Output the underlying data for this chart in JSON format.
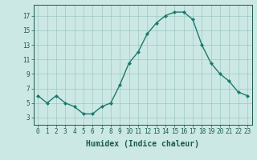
{
  "x": [
    0,
    1,
    2,
    3,
    4,
    5,
    6,
    7,
    8,
    9,
    10,
    11,
    12,
    13,
    14,
    15,
    16,
    17,
    18,
    19,
    20,
    21,
    22,
    23
  ],
  "y": [
    6.0,
    5.0,
    6.0,
    5.0,
    4.5,
    3.5,
    3.5,
    4.5,
    5.0,
    7.5,
    10.5,
    12.0,
    14.5,
    16.0,
    17.0,
    17.5,
    17.5,
    16.5,
    13.0,
    10.5,
    9.0,
    8.0,
    6.5,
    6.0
  ],
  "line_color": "#1a7a6e",
  "marker": "D",
  "markersize": 2.0,
  "linewidth": 1.0,
  "background_color": "#cce8e4",
  "grid_color": "#a0c8c4",
  "xlabel": "Humidex (Indice chaleur)",
  "xlim": [
    -0.5,
    23.5
  ],
  "ylim": [
    2.0,
    18.5
  ],
  "yticks": [
    3,
    5,
    7,
    9,
    11,
    13,
    15,
    17
  ],
  "xticks": [
    0,
    1,
    2,
    3,
    4,
    5,
    6,
    7,
    8,
    9,
    10,
    11,
    12,
    13,
    14,
    15,
    16,
    17,
    18,
    19,
    20,
    21,
    22,
    23
  ],
  "tick_fontsize": 5.5,
  "xlabel_fontsize": 7.0,
  "tick_color": "#1a5a50"
}
